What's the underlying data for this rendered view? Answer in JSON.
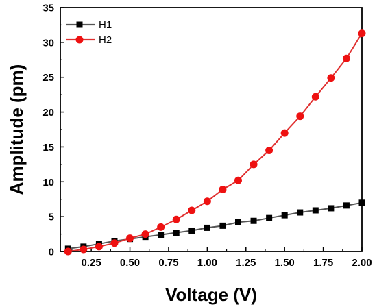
{
  "chart_data": {
    "type": "line",
    "xlabel": "Voltage (V)",
    "ylabel": "Amplitude (pm)",
    "xlim": [
      0.05,
      2.0
    ],
    "ylim": [
      0,
      35
    ],
    "xticks": [
      "0.25",
      "0.50",
      "0.75",
      "1.00",
      "1.25",
      "1.50",
      "1.75",
      "2.00"
    ],
    "xtick_values": [
      0.25,
      0.5,
      0.75,
      1.0,
      1.25,
      1.5,
      1.75,
      2.0
    ],
    "yticks": [
      "0",
      "5",
      "10",
      "15",
      "20",
      "25",
      "30",
      "35"
    ],
    "ytick_values": [
      0,
      5,
      10,
      15,
      20,
      25,
      30,
      35
    ],
    "x": [
      0.1,
      0.2,
      0.3,
      0.4,
      0.5,
      0.6,
      0.7,
      0.8,
      0.9,
      1.0,
      1.1,
      1.2,
      1.3,
      1.4,
      1.5,
      1.6,
      1.7,
      1.8,
      1.9,
      2.0
    ],
    "series": [
      {
        "name": "H1",
        "color": "#000000",
        "line_color": "#555555",
        "marker": "square",
        "values": [
          0.4,
          0.7,
          1.1,
          1.5,
          1.8,
          2.1,
          2.4,
          2.7,
          3.0,
          3.4,
          3.7,
          4.2,
          4.4,
          4.8,
          5.2,
          5.6,
          5.9,
          6.2,
          6.6,
          7.0
        ]
      },
      {
        "name": "H2",
        "color": "#ee1111",
        "line_color": "#e03030",
        "marker": "circle",
        "values": [
          0.0,
          0.3,
          0.7,
          1.2,
          1.9,
          2.5,
          3.5,
          4.6,
          5.9,
          7.2,
          8.9,
          10.2,
          12.5,
          14.5,
          17.0,
          19.4,
          22.2,
          24.9,
          27.7,
          31.3
        ]
      }
    ],
    "legend_position": "top-left",
    "grid": false
  }
}
